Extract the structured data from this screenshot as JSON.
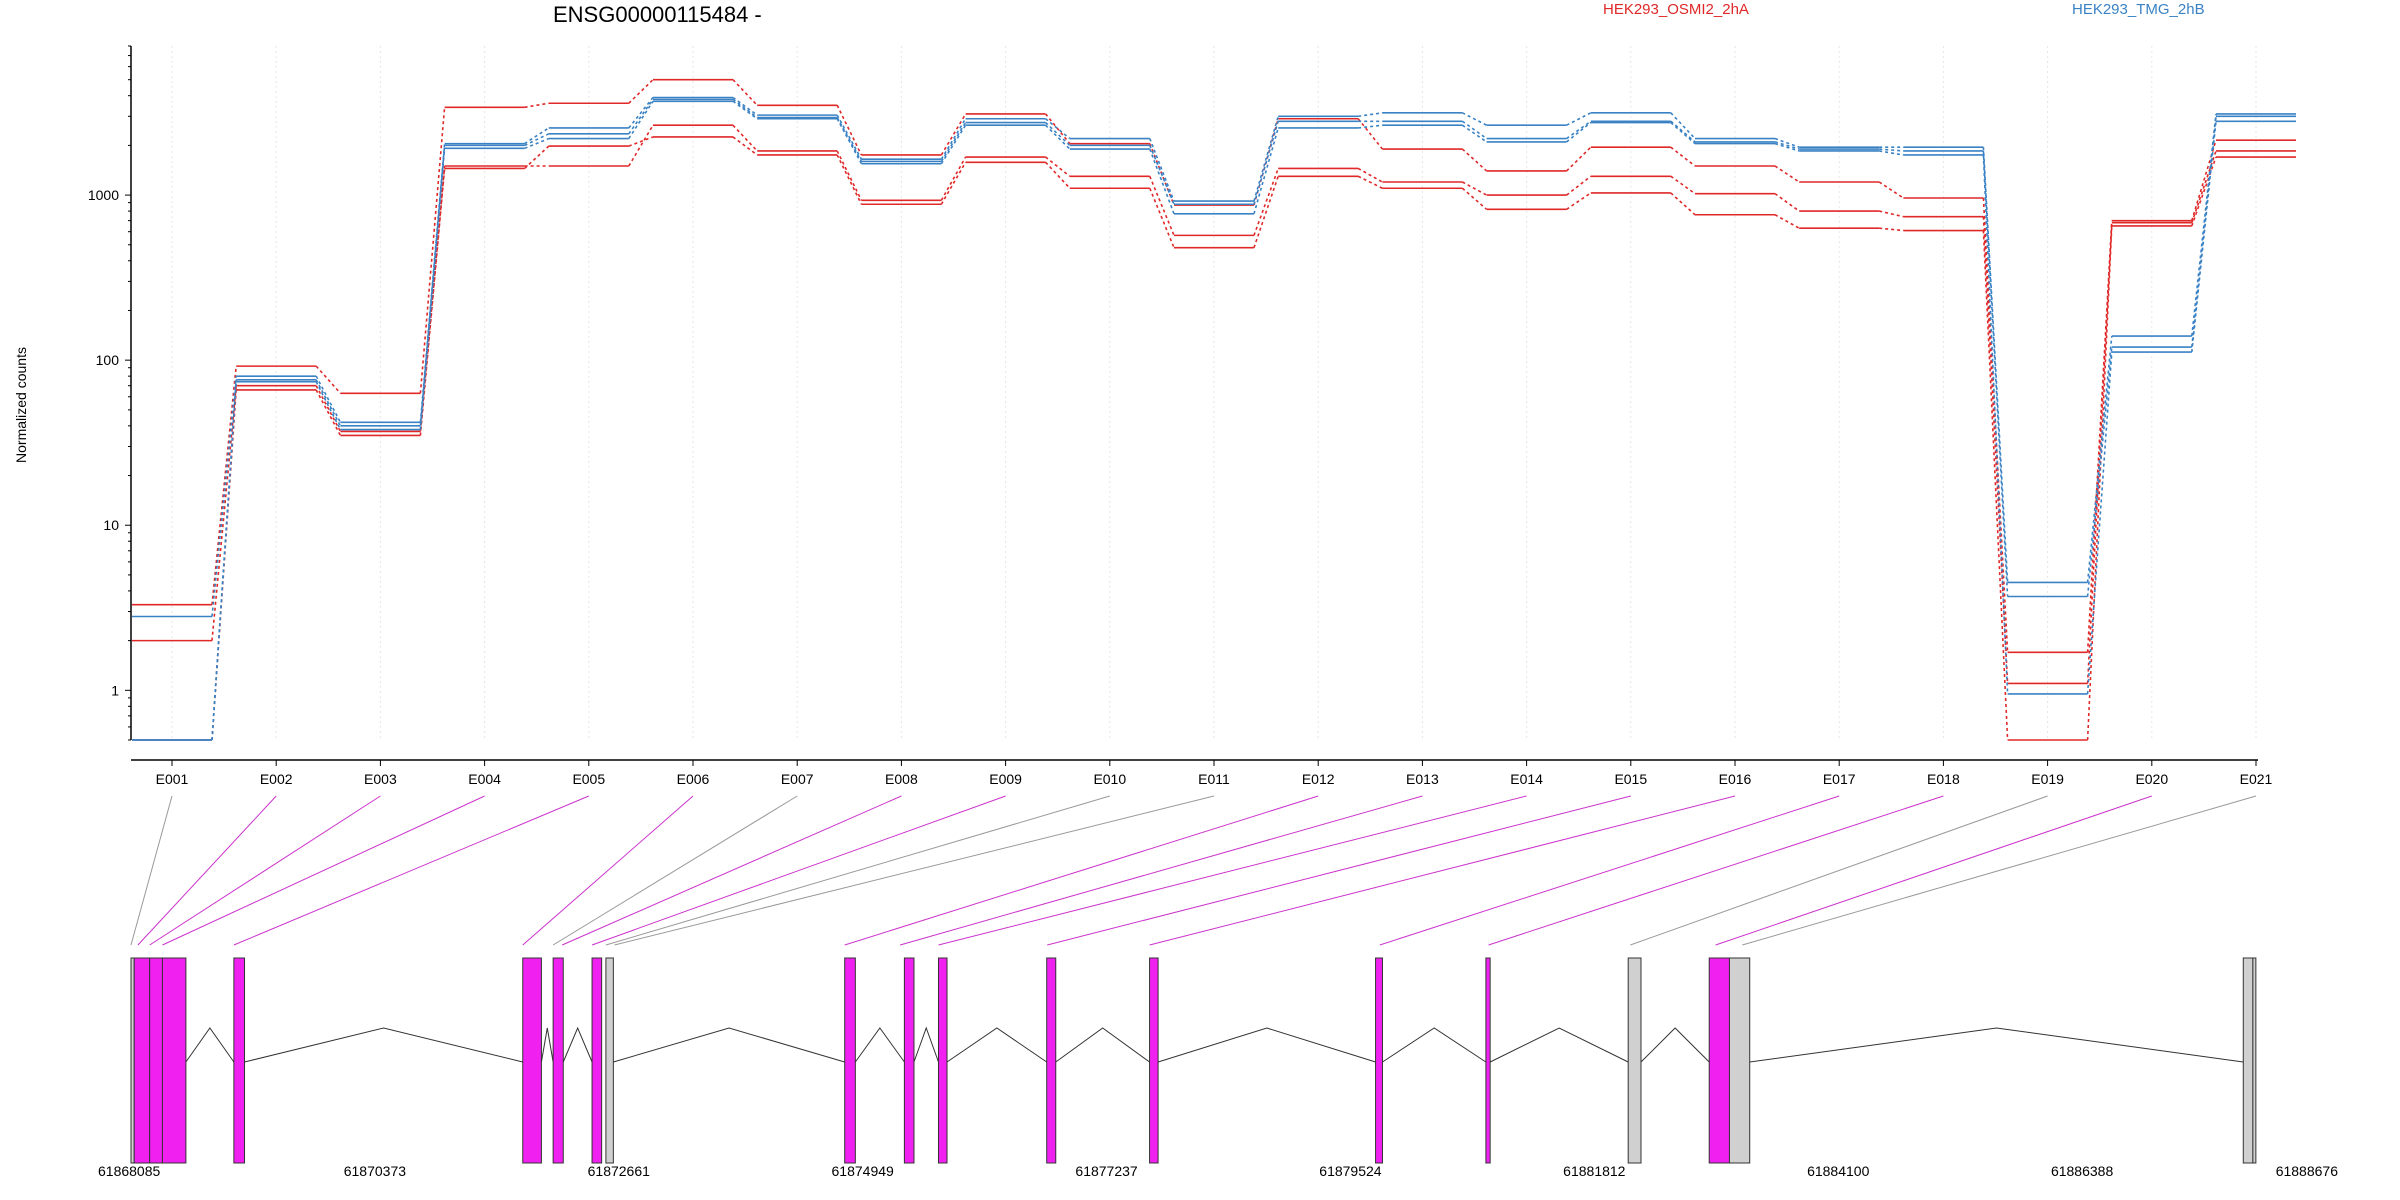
{
  "chart_data": {
    "type": "line",
    "title": "ENSG00000115484 -",
    "ylabel": "Normalized counts",
    "y_scale": "log",
    "ylim": [
      0.5,
      8000
    ],
    "y_ticks": [
      1,
      10,
      100,
      1000
    ],
    "y_tick_labels": [
      "1",
      "10",
      "100",
      "1000"
    ],
    "grid": "vertical dotted gridlines at each exon",
    "legend_placement": "top",
    "categories": [
      "E001",
      "E002",
      "E003",
      "E004",
      "E005",
      "E006",
      "E007",
      "E008",
      "E009",
      "E010",
      "E011",
      "E012",
      "E013",
      "E014",
      "E015",
      "E016",
      "E017",
      "E018",
      "E019",
      "E020",
      "E021"
    ],
    "legend": [
      {
        "name": "HEK293_OSMI2_2hA",
        "color": "#e02828"
      },
      {
        "name": "HEK293_TMG_2hB",
        "color": "#3a82c4"
      }
    ],
    "series": [
      {
        "group": "HEK293_OSMI2_2hA",
        "color": "#e02828",
        "values": [
          3.3,
          92,
          63,
          3400,
          3600,
          5000,
          3500,
          1750,
          3100,
          2050,
          870,
          2900,
          1900,
          1400,
          1950,
          1500,
          1200,
          960,
          1.7,
          700,
          2150
        ]
      },
      {
        "group": "HEK293_OSMI2_2hA",
        "color": "#e02828",
        "values": [
          2.0,
          70,
          37,
          1500,
          1500,
          2650,
          1850,
          930,
          1700,
          1300,
          570,
          1450,
          1200,
          1000,
          1300,
          1020,
          800,
          740,
          1.1,
          680,
          1850
        ]
      },
      {
        "group": "HEK293_OSMI2_2hA",
        "color": "#e02828",
        "values": [
          0.5,
          66,
          35,
          1450,
          1980,
          2250,
          1750,
          880,
          1580,
          1100,
          480,
          1300,
          1100,
          820,
          1030,
          760,
          630,
          610,
          0.5,
          650,
          1700
        ]
      },
      {
        "group": "HEK293_TMG_2hB",
        "color": "#3a82c4",
        "values": [
          2.8,
          80,
          42,
          2050,
          2550,
          3900,
          3050,
          1650,
          2900,
          2200,
          920,
          3000,
          3150,
          2650,
          3150,
          2200,
          1950,
          1950,
          4.5,
          140,
          3100
        ]
      },
      {
        "group": "HEK293_TMG_2hB",
        "color": "#3a82c4",
        "values": [
          0.5,
          76,
          40,
          2000,
          2350,
          3800,
          2950,
          1600,
          2750,
          2000,
          880,
          2800,
          2800,
          2200,
          2800,
          2100,
          1900,
          1850,
          3.7,
          120,
          3000
        ]
      },
      {
        "group": "HEK293_TMG_2hB",
        "color": "#3a82c4",
        "values": [
          0.5,
          74,
          38,
          1920,
          2200,
          3700,
          2900,
          1550,
          2650,
          1900,
          770,
          2550,
          2650,
          2100,
          2750,
          2050,
          1850,
          1750,
          0.95,
          112,
          2800
        ]
      }
    ],
    "exon_connectors": [
      "grey",
      "magenta",
      "magenta",
      "magenta",
      "magenta",
      "magenta",
      "grey",
      "magenta",
      "magenta",
      "grey",
      "grey",
      "magenta",
      "magenta",
      "magenta",
      "magenta",
      "magenta",
      "magenta",
      "magenta",
      "grey",
      "magenta",
      "grey"
    ],
    "gene_model": {
      "genomic_range": [
        61868085,
        61888676
      ],
      "position_labels": [
        "61868085",
        "61870373",
        "61872661",
        "61874949",
        "61877237",
        "61879524",
        "61881812",
        "61884100",
        "61886388",
        "61888676"
      ],
      "exons": [
        {
          "id": "E001",
          "start": 61868085,
          "end": 61868115,
          "color": "#d0d0d0"
        },
        {
          "id": "E002",
          "start": 61868115,
          "end": 61868260,
          "color": "#f020f0"
        },
        {
          "id": "E003",
          "start": 61868260,
          "end": 61868380,
          "color": "#f020f0"
        },
        {
          "id": "E004",
          "start": 61868380,
          "end": 61868600,
          "color": "#f020f0"
        },
        {
          "id": "E005",
          "start": 61869050,
          "end": 61869150,
          "color": "#f020f0"
        },
        {
          "id": "E006",
          "start": 61871760,
          "end": 61871935,
          "color": "#f020f0"
        },
        {
          "id": "E007",
          "start": 61872045,
          "end": 61872140,
          "color": "#f020f0"
        },
        {
          "id": "E008",
          "start": 61872410,
          "end": 61872500,
          "color": "#f020f0"
        },
        {
          "id": "E009",
          "start": 61872540,
          "end": 61872610,
          "color": "#d0d0d0"
        },
        {
          "id": "E010",
          "start": 61874780,
          "end": 61874880,
          "color": "#f020f0"
        },
        {
          "id": "E011",
          "start": 61875340,
          "end": 61875430,
          "color": "#f020f0"
        },
        {
          "id": "E012",
          "start": 61875660,
          "end": 61875740,
          "color": "#f020f0"
        },
        {
          "id": "E013",
          "start": 61876675,
          "end": 61876760,
          "color": "#f020f0"
        },
        {
          "id": "E014",
          "start": 61877640,
          "end": 61877720,
          "color": "#f020f0"
        },
        {
          "id": "E015",
          "start": 61879760,
          "end": 61879825,
          "color": "#f020f0"
        },
        {
          "id": "E016",
          "start": 61880795,
          "end": 61880835,
          "color": "#f020f0"
        },
        {
          "id": "E017",
          "start": 61882130,
          "end": 61882250,
          "color": "#d0d0d0"
        },
        {
          "id": "E018",
          "start": 61882890,
          "end": 61883080,
          "color": "#f020f0"
        },
        {
          "id": "E019",
          "start": 61883080,
          "end": 61883270,
          "color": "#d0d0d0"
        },
        {
          "id": "E020",
          "start": 61887900,
          "end": 61887990,
          "color": "#d0d0d0"
        },
        {
          "id": "E021",
          "start": 61887990,
          "end": 61888010,
          "color": "#d0d0d0"
        }
      ],
      "connector_targets": [
        61868085,
        61868150,
        61868260,
        61868380,
        61869050,
        61871760,
        61872045,
        61872130,
        61872410,
        61872540,
        61872620,
        61874780,
        61875300,
        61875660,
        61876680,
        61877640,
        61879800,
        61880820,
        61882150,
        61882950,
        61883200
      ],
      "introns": [
        [
          61868600,
          61869050
        ],
        [
          61869150,
          61871760
        ],
        [
          61871935,
          61872045
        ],
        [
          61872140,
          61872410
        ],
        [
          61872610,
          61874780
        ],
        [
          61874880,
          61875340
        ],
        [
          61875430,
          61875660
        ],
        [
          61875740,
          61876675
        ],
        [
          61876760,
          61877640
        ],
        [
          61877720,
          61879760
        ],
        [
          61879825,
          61880795
        ],
        [
          61880835,
          61882130
        ],
        [
          61882250,
          61882890
        ],
        [
          61883270,
          61887900
        ]
      ]
    }
  }
}
